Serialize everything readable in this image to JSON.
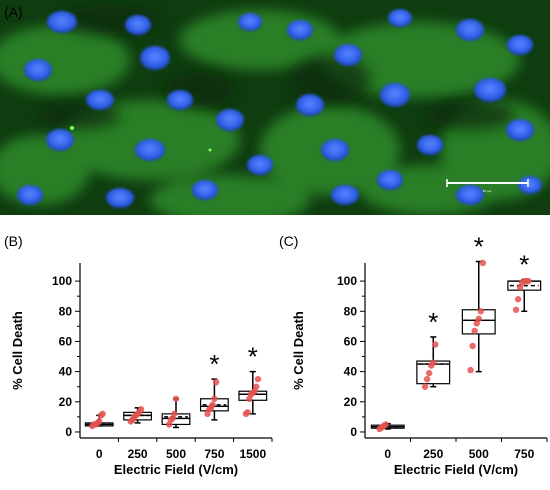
{
  "panel_a": {
    "label": "(A)",
    "description_colors": {
      "background": "#0e3a0e",
      "cytoplasm": "#2f8a2f",
      "nuclei": "#2f5fe8"
    },
    "scale_bar_text": "50 µm"
  },
  "chart_data": [
    {
      "panel_label": "(B)",
      "type": "box",
      "xlabel": "Electric Field (V/cm)",
      "ylabel": "% Cell Death",
      "ylim": [
        -4,
        112
      ],
      "yticks": [
        0,
        20,
        40,
        60,
        80,
        100
      ],
      "categories": [
        "0",
        "250",
        "500",
        "750",
        "1500"
      ],
      "boxes": [
        {
          "min": 4,
          "q1": 4,
          "median": 5,
          "mean": 5,
          "q3": 6,
          "max": 11,
          "points": [
            4,
            5,
            5,
            6,
            7,
            11,
            12
          ],
          "significant": false
        },
        {
          "min": 6,
          "q1": 8,
          "median": 11,
          "mean": 11,
          "q3": 13,
          "max": 16,
          "points": [
            7,
            8,
            10,
            11,
            12,
            13,
            15
          ],
          "significant": false
        },
        {
          "min": 3,
          "q1": 5,
          "median": 9,
          "mean": 10,
          "q3": 12,
          "max": 22,
          "points": [
            5,
            8,
            9,
            12,
            22
          ],
          "significant": false
        },
        {
          "min": 8,
          "q1": 14,
          "median": 17,
          "mean": 18,
          "q3": 22,
          "max": 35,
          "points": [
            12,
            15,
            16,
            18,
            22,
            33
          ],
          "significant": true
        },
        {
          "min": 12,
          "q1": 21,
          "median": 25,
          "mean": 25,
          "q3": 27,
          "max": 40,
          "points": [
            12,
            13,
            22,
            25,
            26,
            27,
            30,
            35
          ],
          "significant": true
        }
      ],
      "significance_marker": "*"
    },
    {
      "panel_label": "(C)",
      "type": "box",
      "xlabel": "Electric Field (V/cm)",
      "ylabel": "% Cell Death",
      "ylim": [
        -4,
        112
      ],
      "yticks": [
        0,
        20,
        40,
        60,
        80,
        100
      ],
      "categories": [
        "0",
        "250",
        "500",
        "750"
      ],
      "boxes": [
        {
          "min": 2,
          "q1": 2.5,
          "median": 3.5,
          "mean": 3.5,
          "q3": 4.5,
          "max": 5.5,
          "points": [
            2,
            3,
            4,
            5
          ],
          "significant": false
        },
        {
          "min": 30,
          "q1": 32,
          "median": 45,
          "mean": 45,
          "q3": 47,
          "max": 63,
          "points": [
            30,
            35,
            39,
            44,
            46,
            58
          ],
          "significant": true
        },
        {
          "min": 40,
          "q1": 65,
          "median": 74,
          "mean": 74,
          "q3": 81,
          "max": 113,
          "points": [
            41,
            57,
            67,
            72,
            75,
            80,
            112
          ],
          "significant": true
        },
        {
          "min": 80,
          "q1": 94,
          "median": 100,
          "mean": 97,
          "q3": 100,
          "max": 101,
          "points": [
            81,
            88,
            96,
            99,
            100,
            100,
            100
          ],
          "significant": true
        }
      ],
      "significance_marker": "*"
    }
  ]
}
